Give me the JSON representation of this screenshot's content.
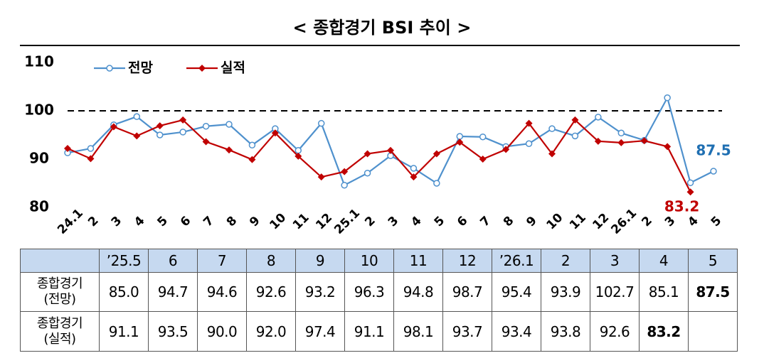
{
  "chart_data": {
    "type": "line",
    "title": "< 종합경기 BSI 추이 >",
    "categories": [
      "24.1",
      "2",
      "3",
      "4",
      "5",
      "6",
      "7",
      "8",
      "9",
      "10",
      "11",
      "12",
      "25.1",
      "2",
      "3",
      "4",
      "5",
      "6",
      "7",
      "8",
      "9",
      "10",
      "11",
      "12",
      "26.1",
      "2",
      "3",
      "4",
      "5"
    ],
    "series": [
      {
        "name": "전망",
        "color": "#4f91cd",
        "marker": "circle",
        "values": [
          91.3,
          92.2,
          97.1,
          98.8,
          95.0,
          95.6,
          96.8,
          97.2,
          92.9,
          96.3,
          91.8,
          97.4,
          84.6,
          87.1,
          90.7,
          88.1,
          85.0,
          94.7,
          94.6,
          92.6,
          93.2,
          96.3,
          94.8,
          98.7,
          95.4,
          93.9,
          102.7,
          85.1,
          87.5
        ],
        "value_labels": [
          null,
          null,
          null,
          null,
          null,
          null,
          null,
          null,
          null,
          null,
          null,
          null,
          null,
          null,
          null,
          null,
          null,
          null,
          null,
          null,
          null,
          null,
          null,
          null,
          null,
          null,
          null,
          null,
          "87.5"
        ],
        "label_color": "#1f6fb2"
      },
      {
        "name": "실적",
        "color": "#c00000",
        "marker": "diamond",
        "values": [
          92.2,
          90.1,
          96.7,
          94.8,
          96.9,
          98.1,
          93.6,
          91.9,
          89.9,
          95.4,
          90.6,
          86.3,
          87.4,
          91.1,
          91.8,
          86.3,
          91.1,
          93.5,
          90.0,
          92.0,
          97.4,
          91.1,
          98.1,
          93.7,
          93.4,
          93.8,
          92.6,
          83.2,
          null
        ],
        "value_labels": [
          null,
          null,
          null,
          null,
          null,
          null,
          null,
          null,
          null,
          null,
          null,
          null,
          null,
          null,
          null,
          null,
          null,
          null,
          null,
          null,
          null,
          null,
          null,
          null,
          null,
          null,
          null,
          "83.2",
          null
        ],
        "label_color": "#c00000"
      }
    ],
    "ylim": [
      80,
      110
    ],
    "yticks": [
      80,
      90,
      100,
      110
    ],
    "grid": false,
    "reference_line": 100,
    "legend": "top-left"
  },
  "table": {
    "header": [
      "",
      "’25.5",
      "6",
      "7",
      "8",
      "9",
      "10",
      "11",
      "12",
      "’26.1",
      "2",
      "3",
      "4",
      "5"
    ],
    "rows": [
      [
        "종합경기\n(전망)",
        "85.0",
        "94.7",
        "94.6",
        "92.6",
        "93.2",
        "96.3",
        "94.8",
        "98.7",
        "95.4",
        "93.9",
        "102.7",
        "85.1",
        "87.5"
      ],
      [
        "종합경기\n(실적)",
        "91.1",
        "93.5",
        "90.0",
        "92.0",
        "97.4",
        "91.1",
        "98.1",
        "93.7",
        "93.4",
        "93.8",
        "92.6",
        "83.2",
        ""
      ]
    ]
  }
}
